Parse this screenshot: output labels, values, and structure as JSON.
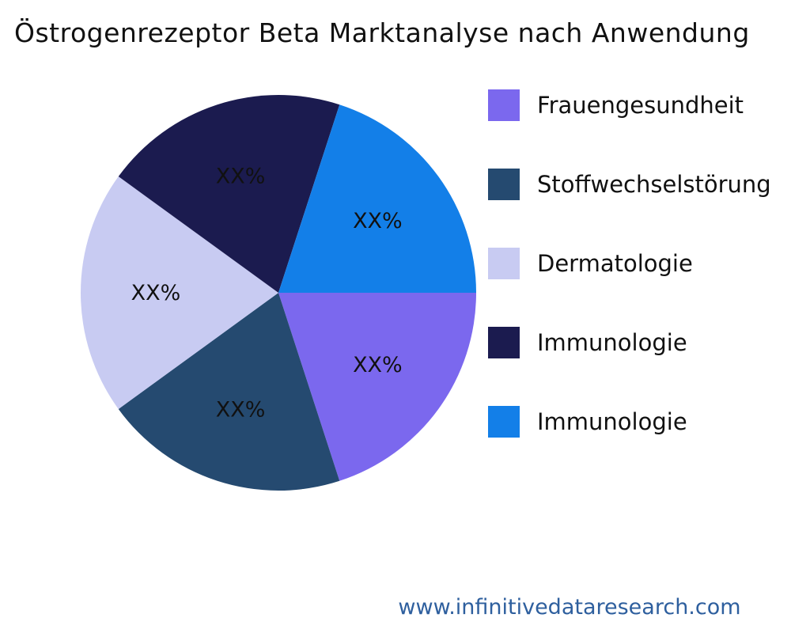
{
  "title": "Östrogenrezeptor Beta Marktanalyse nach Anwendung",
  "footer": {
    "url": "www.infinitivedataresearch.com",
    "color": "#2e5f9e"
  },
  "chart_data": {
    "type": "pie",
    "title": "Östrogenrezeptor Beta Marktanalyse nach Anwendung",
    "legend_position": "right",
    "start_angle_deg": 0,
    "direction": "clockwise",
    "slices": [
      {
        "label": "Frauengesundheit",
        "value": 20,
        "value_label": "XX%",
        "color": "#7B68EE"
      },
      {
        "label": "Stoffwechselstörung",
        "value": 20,
        "value_label": "XX%",
        "color": "#254a70"
      },
      {
        "label": "Dermatologie",
        "value": 20,
        "value_label": "XX%",
        "color": "#c8cbf2"
      },
      {
        "label": "Immunologie",
        "value": 20,
        "value_label": "XX%",
        "color": "#1b1b4f"
      },
      {
        "label": "Immunologie",
        "value": 20,
        "value_label": "XX%",
        "color": "#137fe8"
      }
    ]
  }
}
